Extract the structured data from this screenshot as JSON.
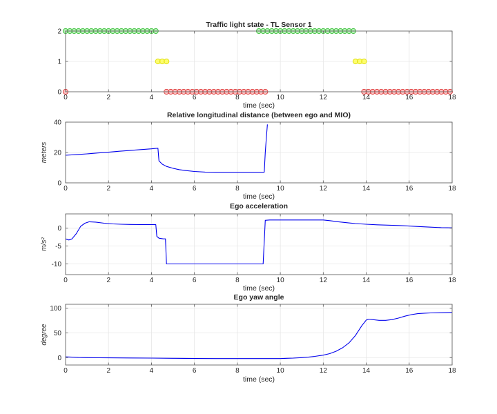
{
  "figure": {
    "bg": "#ffffff",
    "axis_color": "#666666",
    "grid_color": "#e6e6e6",
    "text_color": "#262626",
    "line_color": "#0000ee"
  },
  "chart_data": [
    {
      "type": "scatter",
      "title": "Traffic light state - TL Sensor 1",
      "xlabel": "time (sec)",
      "ylabel": "",
      "xlim": [
        0,
        18
      ],
      "ylim": [
        0,
        2
      ],
      "xticks": [
        0,
        2,
        4,
        6,
        8,
        10,
        12,
        14,
        16,
        18
      ],
      "yticks": [
        0,
        1,
        2
      ],
      "marker_step": 0.2,
      "legend": "none",
      "grid": true,
      "marker_colors": {
        "green": {
          "stroke": "#46c446",
          "fill": "#7de37d",
          "fill_opacity": 0.55
        },
        "yellow": {
          "stroke": "#dede10",
          "fill": "#ffff40",
          "fill_opacity": 0.75
        },
        "red": {
          "stroke": "#e04545",
          "fill": "#ff9090",
          "fill_opacity": 0.55
        }
      },
      "segments": [
        {
          "state": "red",
          "y": 0,
          "from": 0,
          "to": 0
        },
        {
          "state": "green",
          "y": 2,
          "from": 0,
          "to": 4.2
        },
        {
          "state": "yellow",
          "y": 1,
          "from": 4.3,
          "to": 4.7
        },
        {
          "state": "red",
          "y": 0,
          "from": 4.7,
          "to": 9.3
        },
        {
          "state": "green",
          "y": 2,
          "from": 9.0,
          "to": 13.4
        },
        {
          "state": "yellow",
          "y": 1,
          "from": 13.5,
          "to": 13.9
        },
        {
          "state": "red",
          "y": 0,
          "from": 13.9,
          "to": 18.0
        }
      ]
    },
    {
      "type": "line",
      "title": "Relative longitudinal distance (between ego and MIO)",
      "xlabel": "time (sec)",
      "ylabel": "meters",
      "xlim": [
        0,
        18
      ],
      "ylim": [
        0,
        40
      ],
      "xticks": [
        0,
        2,
        4,
        6,
        8,
        10,
        12,
        14,
        16,
        18
      ],
      "yticks": [
        0,
        20,
        40
      ],
      "grid": true,
      "points": [
        [
          0,
          18.2
        ],
        [
          0.5,
          18.6
        ],
        [
          1,
          19.1
        ],
        [
          1.5,
          19.7
        ],
        [
          2,
          20.2
        ],
        [
          2.5,
          20.8
        ],
        [
          3,
          21.3
        ],
        [
          3.5,
          21.9
        ],
        [
          4,
          22.4
        ],
        [
          4.2,
          22.7
        ],
        [
          4.3,
          22.8
        ],
        [
          4.35,
          14.5
        ],
        [
          4.5,
          12.3
        ],
        [
          4.7,
          10.8
        ],
        [
          5,
          9.6
        ],
        [
          5.3,
          8.7
        ],
        [
          5.6,
          8.1
        ],
        [
          6,
          7.5
        ],
        [
          6.5,
          7.1
        ],
        [
          7,
          7
        ],
        [
          7.5,
          7
        ],
        [
          8,
          7
        ],
        [
          8.5,
          7
        ],
        [
          9,
          7
        ],
        [
          9.25,
          7
        ],
        [
          9.3,
          20
        ],
        [
          9.35,
          30
        ],
        [
          9.4,
          38.5
        ]
      ]
    },
    {
      "type": "line",
      "title": "Ego acceleration",
      "xlabel": "time (sec)",
      "ylabel": "m/s²",
      "xlim": [
        0,
        18
      ],
      "ylim": [
        -13,
        4
      ],
      "xticks": [
        0,
        2,
        4,
        6,
        8,
        10,
        12,
        14,
        16,
        18
      ],
      "yticks": [
        -10,
        -5,
        0
      ],
      "grid": true,
      "points": [
        [
          0,
          -3
        ],
        [
          0.15,
          -3.3
        ],
        [
          0.3,
          -3
        ],
        [
          0.5,
          -1.5
        ],
        [
          0.7,
          0.5
        ],
        [
          0.9,
          1.4
        ],
        [
          1.1,
          1.8
        ],
        [
          1.4,
          1.7
        ],
        [
          1.8,
          1.4
        ],
        [
          2.2,
          1.2
        ],
        [
          2.6,
          1.1
        ],
        [
          3,
          1.05
        ],
        [
          3.5,
          1
        ],
        [
          4,
          1
        ],
        [
          4.2,
          1
        ],
        [
          4.25,
          -2.3
        ],
        [
          4.35,
          -2.8
        ],
        [
          4.55,
          -3
        ],
        [
          4.65,
          -3
        ],
        [
          4.7,
          -10
        ],
        [
          5,
          -10
        ],
        [
          6,
          -10
        ],
        [
          7,
          -10
        ],
        [
          8,
          -10
        ],
        [
          9,
          -10
        ],
        [
          9.2,
          -10
        ],
        [
          9.3,
          2.2
        ],
        [
          9.5,
          2.3
        ],
        [
          10,
          2.3
        ],
        [
          10.5,
          2.3
        ],
        [
          11,
          2.3
        ],
        [
          11.5,
          2.3
        ],
        [
          12,
          2.3
        ],
        [
          12.3,
          2.1
        ],
        [
          12.7,
          1.8
        ],
        [
          13,
          1.6
        ],
        [
          13.5,
          1.3
        ],
        [
          14,
          1.1
        ],
        [
          14.5,
          0.95
        ],
        [
          15,
          0.85
        ],
        [
          15.5,
          0.75
        ],
        [
          16,
          0.6
        ],
        [
          16.5,
          0.45
        ],
        [
          17,
          0.3
        ],
        [
          17.5,
          0.15
        ],
        [
          18,
          0.1
        ]
      ]
    },
    {
      "type": "line",
      "title": "Ego yaw angle",
      "xlabel": "time (sec)",
      "ylabel": "degree",
      "xlim": [
        0,
        18
      ],
      "ylim": [
        -15,
        108
      ],
      "xticks": [
        0,
        2,
        4,
        6,
        8,
        10,
        12,
        14,
        16,
        18
      ],
      "yticks": [
        0,
        50,
        100
      ],
      "grid": true,
      "points": [
        [
          0,
          1.5
        ],
        [
          0.3,
          1
        ],
        [
          0.6,
          0.3
        ],
        [
          1,
          0
        ],
        [
          1.5,
          -0.3
        ],
        [
          2,
          -0.5
        ],
        [
          3,
          -0.8
        ],
        [
          4,
          -1
        ],
        [
          5,
          -1.5
        ],
        [
          6,
          -1.8
        ],
        [
          7,
          -2
        ],
        [
          8,
          -2
        ],
        [
          9,
          -2
        ],
        [
          9.5,
          -2
        ],
        [
          10,
          -2
        ],
        [
          10.3,
          -1.5
        ],
        [
          10.6,
          -1
        ],
        [
          11,
          0
        ],
        [
          11.3,
          1
        ],
        [
          11.6,
          2.5
        ],
        [
          12,
          5
        ],
        [
          12.3,
          8
        ],
        [
          12.6,
          13
        ],
        [
          12.9,
          20
        ],
        [
          13.2,
          30
        ],
        [
          13.5,
          45
        ],
        [
          13.8,
          65
        ],
        [
          14,
          76
        ],
        [
          14.1,
          78
        ],
        [
          14.3,
          77
        ],
        [
          14.6,
          75.5
        ],
        [
          14.9,
          75.5
        ],
        [
          15.2,
          77
        ],
        [
          15.5,
          80
        ],
        [
          15.8,
          84
        ],
        [
          16.1,
          87
        ],
        [
          16.4,
          89
        ],
        [
          16.7,
          90
        ],
        [
          17,
          90.5
        ],
        [
          17.5,
          91
        ],
        [
          18,
          91.5
        ]
      ]
    }
  ]
}
